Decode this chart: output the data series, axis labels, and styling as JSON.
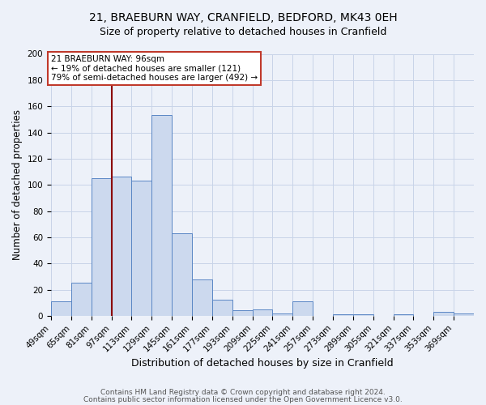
{
  "title1": "21, BRAEBURN WAY, CRANFIELD, BEDFORD, MK43 0EH",
  "title2": "Size of property relative to detached houses in Cranfield",
  "xlabel": "Distribution of detached houses by size in Cranfield",
  "ylabel": "Number of detached properties",
  "bin_edges": [
    49,
    65,
    81,
    97,
    113,
    129,
    145,
    161,
    177,
    193,
    209,
    225,
    241,
    257,
    273,
    289,
    305,
    321,
    337,
    353,
    369
  ],
  "bar_heights": [
    11,
    25,
    105,
    106,
    103,
    153,
    63,
    28,
    12,
    4,
    5,
    2,
    11,
    0,
    1,
    1,
    0,
    1,
    0,
    3,
    2
  ],
  "bar_facecolor": "#ccd9ee",
  "bar_edgecolor": "#5a87c5",
  "vline_color": "#8b0000",
  "vline_x": 97,
  "annotation_text": "21 BRAEBURN WAY: 96sqm\n← 19% of detached houses are smaller (121)\n79% of semi-detached houses are larger (492) →",
  "annotation_box_color": "white",
  "annotation_box_edgecolor": "#c0392b",
  "ylim": [
    0,
    200
  ],
  "yticks": [
    0,
    20,
    40,
    60,
    80,
    100,
    120,
    140,
    160,
    180,
    200
  ],
  "grid_color": "#c8d4e8",
  "background_color": "#edf1f9",
  "footer1": "Contains HM Land Registry data © Crown copyright and database right 2024.",
  "footer2": "Contains public sector information licensed under the Open Government Licence v3.0.",
  "title1_fontsize": 10,
  "title2_fontsize": 9,
  "xlabel_fontsize": 9,
  "ylabel_fontsize": 8.5,
  "tick_fontsize": 7.5,
  "footer_fontsize": 6.5,
  "annotation_fontsize": 7.5
}
